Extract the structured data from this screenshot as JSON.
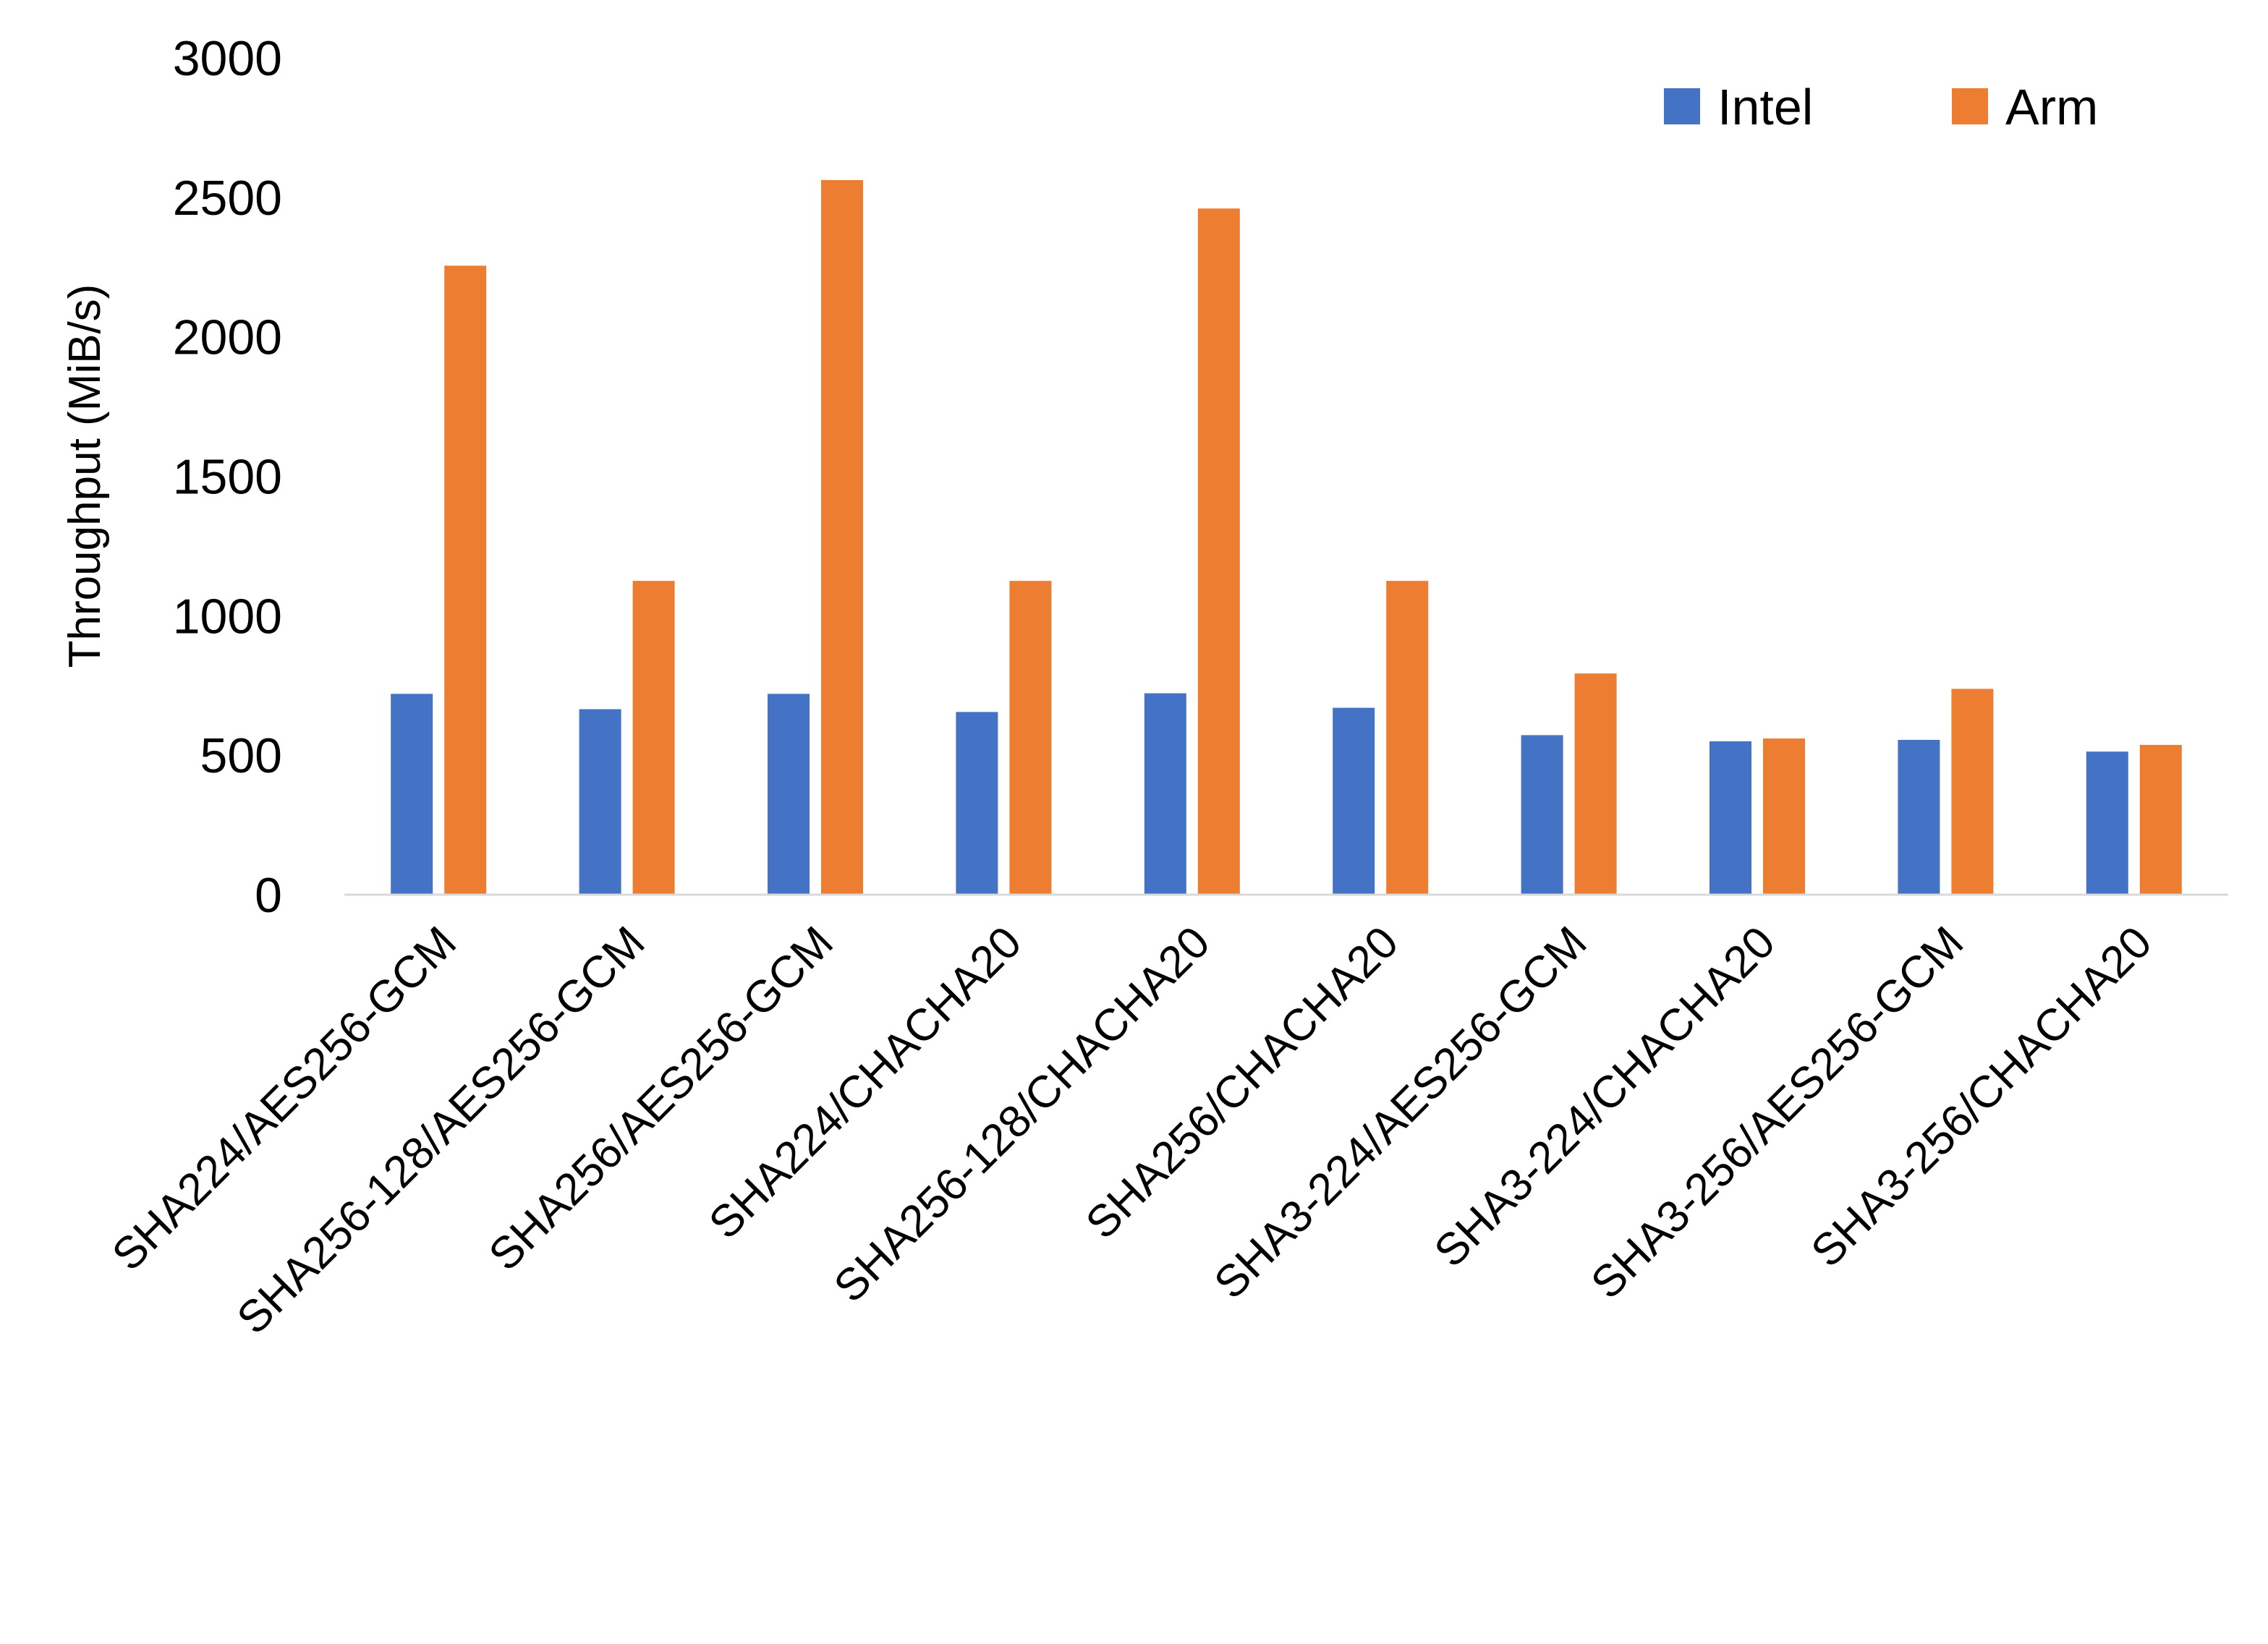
{
  "chart_data": {
    "type": "bar",
    "title": "",
    "xlabel": "",
    "ylabel": "Throughput (MiB/s)",
    "ylim": [
      0,
      3000
    ],
    "yticks": [
      "0",
      "500",
      "1000",
      "1500",
      "2000",
      "2500",
      "3000"
    ],
    "grid": false,
    "legend_position": "top-right",
    "categories": [
      "SHA224/AES256-GCM",
      "SHA256-128/AES256-GCM",
      "SHA256/AES256-GCM",
      "SHA224/CHACHA20",
      "SHA256-128/CHACHA20",
      "SHA256/CHACHA20",
      "SHA3-224/AES256-GCM",
      "SHA3-224/CHACHA20",
      "SHA3-256/AES256-GCM",
      "SHA3-256/CHACHA20"
    ],
    "series": [
      {
        "name": "Intel",
        "color": "#4472C4",
        "values": [
          720,
          665,
          720,
          655,
          722,
          670,
          572,
          550,
          555,
          513
        ]
      },
      {
        "name": "Arm",
        "color": "#ED7D31",
        "values": [
          2255,
          1125,
          2562,
          1125,
          2460,
          1125,
          793,
          560,
          738,
          537
        ]
      }
    ]
  }
}
